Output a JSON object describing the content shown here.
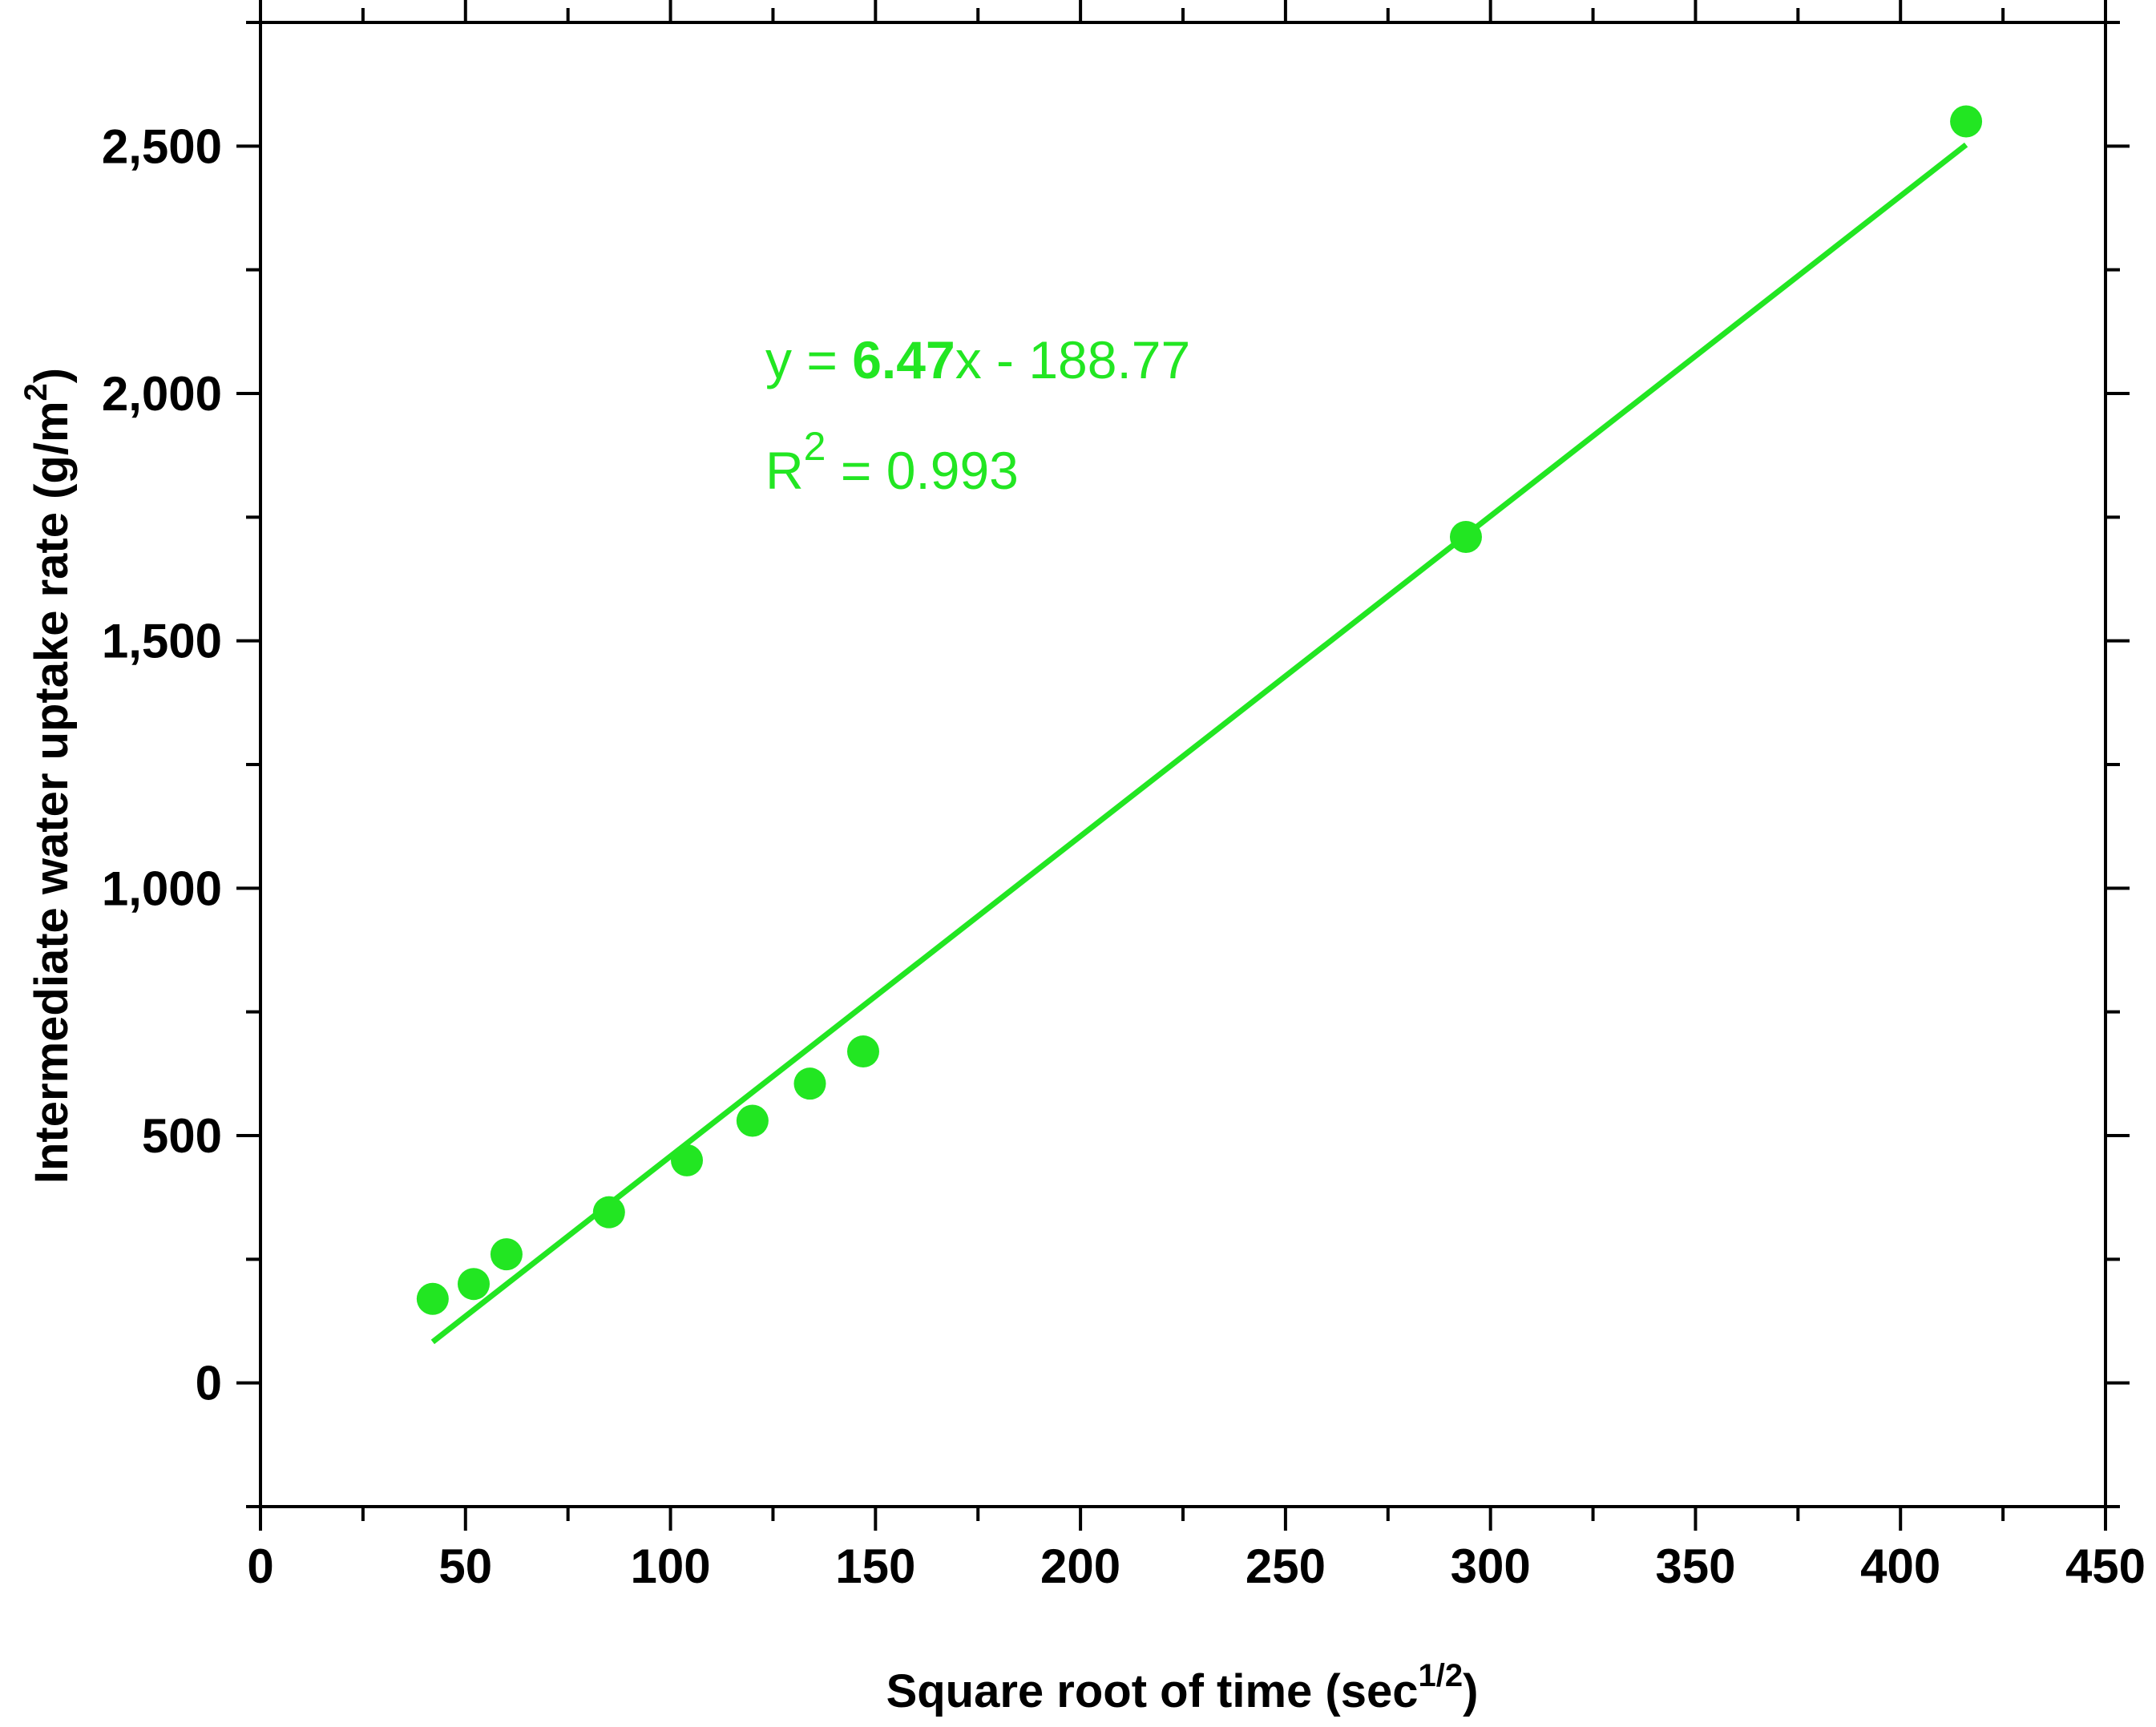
{
  "chart_data": {
    "type": "scatter",
    "title": "",
    "xlabel": "Square root of time (sec",
    "xlabel_sup": "1/2",
    "xlabel_end": ")",
    "ylabel": "Intermediate water uptake rate (g/m",
    "ylabel_sup": "2",
    "ylabel_end": ")",
    "xlim": [
      0,
      450
    ],
    "ylim": [
      -250,
      2750
    ],
    "x_ticks": [
      0,
      50,
      100,
      150,
      200,
      250,
      300,
      350,
      400,
      450
    ],
    "x_tick_labels": [
      "0",
      "50",
      "100",
      "150",
      "200",
      "250",
      "300",
      "350",
      "400",
      "450"
    ],
    "y_ticks": [
      0,
      500,
      1000,
      1500,
      2000,
      2500
    ],
    "y_tick_labels": [
      "0",
      "500",
      "1,000",
      "1,500",
      "2,000",
      "2,500"
    ],
    "grid": false,
    "color": "#22e622",
    "series": [
      {
        "x": [
          42,
          52,
          60,
          85,
          104,
          120,
          134,
          147,
          294,
          416
        ],
        "y": [
          170,
          200,
          260,
          345,
          450,
          530,
          605,
          670,
          1710,
          2550
        ]
      }
    ],
    "fit_line": {
      "x": [
        42,
        416
      ],
      "slope": 6.47,
      "intercept": -188.77
    },
    "annotations": {
      "equation_prefix": "y = ",
      "equation_slope": "6.47",
      "equation_suffix": "x - 188.77",
      "r2_letter": "R",
      "r2_sup": "2",
      "r2_value": " = 0.993"
    }
  }
}
